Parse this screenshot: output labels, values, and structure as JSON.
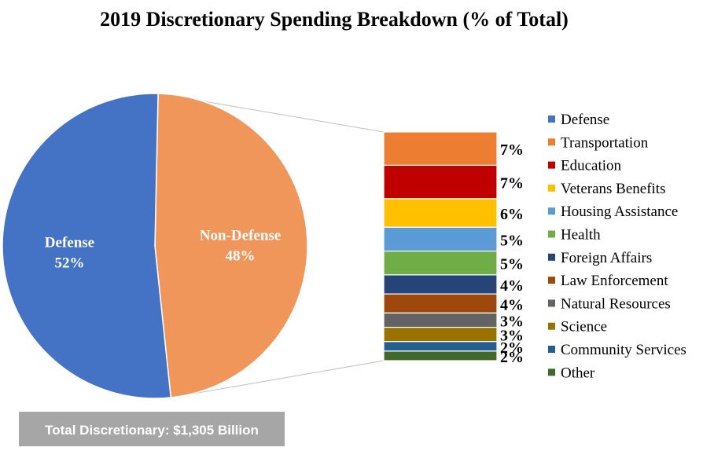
{
  "chart_data": {
    "type": "pie",
    "title": "2019 Discretionary Spending Breakdown (% of Total)",
    "pie": {
      "slices": [
        {
          "name": "Defense",
          "label": "Defense",
          "value": 52,
          "value_label": "52%",
          "color": "#4472C4"
        },
        {
          "name": "Non-Defense",
          "label": "Non-Defense",
          "value": 48,
          "value_label": "48%",
          "color": "#F0965A"
        }
      ]
    },
    "breakdown": {
      "of": "Non-Defense",
      "type": "stacked-bar",
      "items": [
        {
          "name": "Transportation",
          "value": 7,
          "value_label": "7%",
          "color": "#ED7D31"
        },
        {
          "name": "Education",
          "value": 7,
          "value_label": "7%",
          "color": "#C00000"
        },
        {
          "name": "Veterans Benefits",
          "value": 6,
          "value_label": "6%",
          "color": "#FFC000"
        },
        {
          "name": "Housing Assistance",
          "value": 5,
          "value_label": "5%",
          "color": "#5B9BD5"
        },
        {
          "name": "Health",
          "value": 5,
          "value_label": "5%",
          "color": "#70AD47"
        },
        {
          "name": "Foreign Affairs",
          "value": 4,
          "value_label": "4%",
          "color": "#264478"
        },
        {
          "name": "Law Enforcement",
          "value": 4,
          "value_label": "4%",
          "color": "#9E480E"
        },
        {
          "name": "Natural Resources",
          "value": 3,
          "value_label": "3%",
          "color": "#636363"
        },
        {
          "name": "Science",
          "value": 3,
          "value_label": "3%",
          "color": "#997300"
        },
        {
          "name": "Community Services",
          "value": 2,
          "value_label": "2%",
          "color": "#255E91"
        },
        {
          "name": "Other",
          "value": 2,
          "value_label": "2%",
          "color": "#43682B"
        }
      ]
    },
    "legend": {
      "position": "right",
      "entries": [
        {
          "label": "Defense",
          "color": "#4472C4"
        },
        {
          "label": "Transportation",
          "color": "#ED7D31"
        },
        {
          "label": "Education",
          "color": "#C00000"
        },
        {
          "label": "Veterans Benefits",
          "color": "#FFC000"
        },
        {
          "label": "Housing Assistance",
          "color": "#5B9BD5"
        },
        {
          "label": "Health",
          "color": "#70AD47"
        },
        {
          "label": "Foreign Affairs",
          "color": "#264478"
        },
        {
          "label": "Law Enforcement",
          "color": "#9E480E"
        },
        {
          "label": "Natural Resources",
          "color": "#636363"
        },
        {
          "label": "Science",
          "color": "#997300"
        },
        {
          "label": "Community Services",
          "color": "#255E91"
        },
        {
          "label": "Other",
          "color": "#43682B"
        }
      ]
    },
    "annotation": {
      "text": "Total Discretionary: $1,305 Billion",
      "background": "#A6A6A6"
    }
  }
}
